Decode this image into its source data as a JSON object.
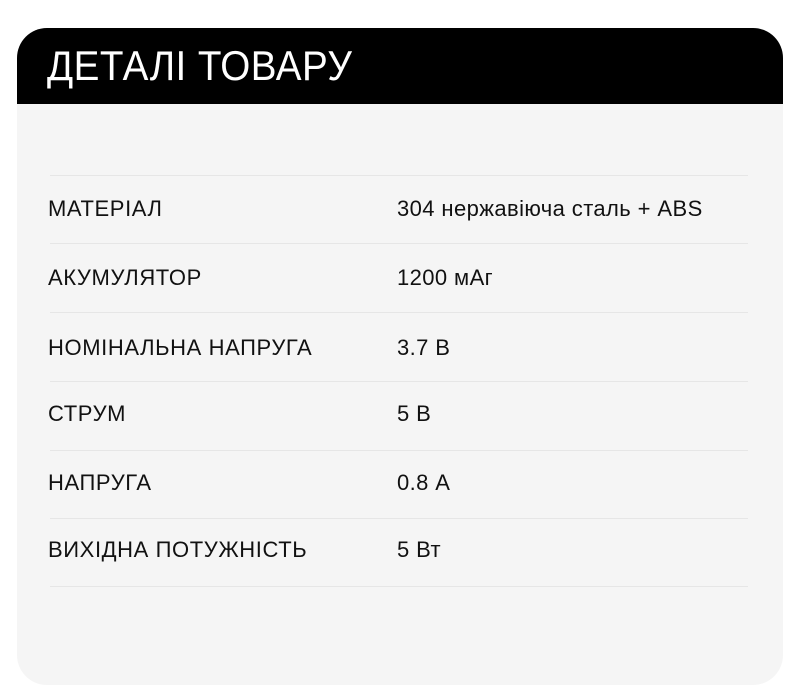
{
  "header": {
    "title": "ДЕТАЛІ ТОВАРУ"
  },
  "rows": [
    {
      "label": "МАТЕРІАЛ",
      "value": "304 нержавіюча сталь + ABS"
    },
    {
      "label": "АКУМУЛЯТОР",
      "value": "1200 мАг"
    },
    {
      "label": "НОМІНАЛЬНА НАПРУГА",
      "value": "3.7 В"
    },
    {
      "label": "СТРУМ",
      "value": "5 В"
    },
    {
      "label": "НАПРУГА",
      "value": "0.8 А"
    },
    {
      "label": "ВИХІДНА ПОТУЖНІСТЬ",
      "value": "5 Вт"
    }
  ]
}
